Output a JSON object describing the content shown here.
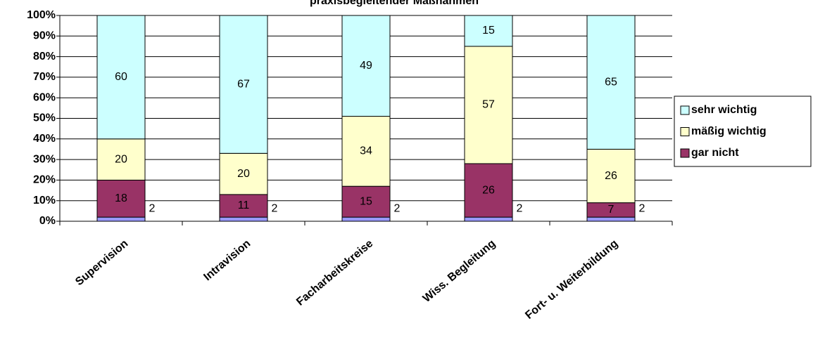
{
  "chart_data": {
    "type": "stacked_bar",
    "title": "praxisbegleitender Maßnahmen",
    "categories": [
      "Supervision",
      "Intravision",
      "Facharbeitskreise",
      "Wiss. Begleitung",
      "Fort- u. Weiterbildung"
    ],
    "series": [
      {
        "color": "#9999ff",
        "values": [
          2,
          2,
          2,
          2,
          2
        ]
      },
      {
        "name": "gar nicht",
        "color": "#993366",
        "values": [
          18,
          11,
          15,
          26,
          7
        ]
      },
      {
        "name": "mäßig wichtig",
        "color": "#ffffcc",
        "values": [
          20,
          20,
          34,
          57,
          26
        ]
      },
      {
        "name": "sehr wichtig",
        "color": "#ccffff",
        "values": [
          60,
          67,
          49,
          15,
          65
        ]
      }
    ],
    "ylim": [
      0,
      100
    ],
    "yticks": [
      {
        "value": 0,
        "label": "0%"
      },
      {
        "value": 10,
        "label": "10%"
      },
      {
        "value": 20,
        "label": "20%"
      },
      {
        "value": 30,
        "label": "30%"
      },
      {
        "value": 40,
        "label": "40%"
      },
      {
        "value": 50,
        "label": "50%"
      },
      {
        "value": 60,
        "label": "60%"
      },
      {
        "value": 70,
        "label": "70%"
      },
      {
        "value": 80,
        "label": "80%"
      },
      {
        "value": 90,
        "label": "90%"
      },
      {
        "value": 100,
        "label": "100%"
      }
    ],
    "grid": true,
    "legend": "right"
  }
}
